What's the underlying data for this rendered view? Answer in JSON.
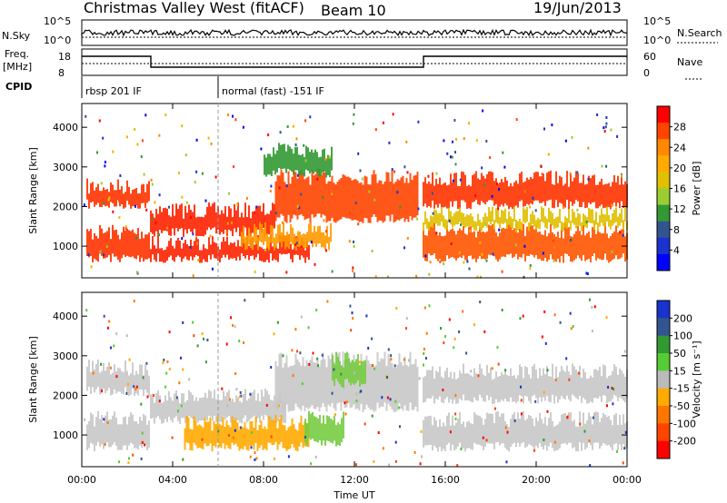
{
  "header": {
    "station": "Christmas Valley West (fitACF)",
    "beam": "Beam 10",
    "date": "19/Jun/2013"
  },
  "summary_panel": {
    "nsky_label": "N.Sky",
    "nsky_ticks": [
      "10^5",
      "10^0"
    ],
    "nsearch_label": "N.Search",
    "nsearch_ticks": [
      "10^5",
      "10^0"
    ],
    "freq_label_1": "Freq.",
    "freq_label_2": "[MHz]",
    "freq_ticks": [
      "18",
      "8"
    ],
    "nave_label": "Nave",
    "nave_ticks": [
      "60",
      "0"
    ],
    "cpid_label": "CPID",
    "cpid_entries": [
      {
        "time_h": 0.0,
        "label": "rbsp 201 IF"
      },
      {
        "time_h": 6.0,
        "label": "normal (fast) -151 IF"
      }
    ]
  },
  "chart_data": [
    {
      "type": "heatmap",
      "name": "power",
      "xlabel": "",
      "ylabel": "Slant Range [km]",
      "xlim": [
        0,
        24
      ],
      "ylim": [
        200,
        4600
      ],
      "yticks": [
        1000,
        2000,
        3000,
        4000
      ],
      "colorbar_label": "Power [dB]",
      "colorbar_ticks": [
        "28",
        "24",
        "20",
        "16",
        "12",
        "8",
        "4"
      ],
      "colorbar_colors": [
        "#ff0000",
        "#ff4400",
        "#ff8800",
        "#ffaa00",
        "#e0c000",
        "#9acd32",
        "#339933",
        "#33558f",
        "#1a33cc",
        "#0000ff"
      ],
      "bands": [
        {
          "t": [
            0.2,
            3.0
          ],
          "r": [
            2050,
            2500
          ],
          "level": "#ff3300"
        },
        {
          "t": [
            0.2,
            3.0
          ],
          "r": [
            700,
            1350
          ],
          "level": "#ff3300"
        },
        {
          "t": [
            3.0,
            8.5
          ],
          "r": [
            1350,
            1900
          ],
          "level": "#ff2200"
        },
        {
          "t": [
            3.0,
            10.0
          ],
          "r": [
            700,
            1100
          ],
          "level": "#ff2200"
        },
        {
          "t": [
            8.5,
            14.8
          ],
          "r": [
            1700,
            2750
          ],
          "level": "#ff4400"
        },
        {
          "t": [
            7.0,
            11.0
          ],
          "r": [
            1000,
            1400
          ],
          "level": "#ff9900"
        },
        {
          "t": [
            15.0,
            24.0
          ],
          "r": [
            2050,
            2700
          ],
          "level": "#ff3300"
        },
        {
          "t": [
            15.0,
            24.0
          ],
          "r": [
            700,
            1400
          ],
          "level": "#ff5500"
        },
        {
          "t": [
            15.0,
            24.0
          ],
          "r": [
            1500,
            1800
          ],
          "level": "#e0c000"
        },
        {
          "t": [
            8.0,
            11.0
          ],
          "r": [
            2850,
            3400
          ],
          "level": "#339933"
        }
      ]
    },
    {
      "type": "heatmap",
      "name": "velocity",
      "xlabel": "Time UT",
      "ylabel": "Slant Range [km]",
      "xlim": [
        0,
        24
      ],
      "ylim": [
        200,
        4600
      ],
      "xticks": [
        "00:00",
        "04:00",
        "08:00",
        "12:00",
        "16:00",
        "20:00",
        "00:00"
      ],
      "yticks": [
        1000,
        2000,
        3000,
        4000
      ],
      "colorbar_label": "Velocity [m s⁻¹]",
      "colorbar_ticks": [
        "200",
        "100",
        "50",
        "15",
        "-15",
        "-50",
        "-100",
        "-200"
      ],
      "colorbar_colors": [
        "#1a33cc",
        "#33558f",
        "#339933",
        "#55cc33",
        "#bbbbbb",
        "#ffaa00",
        "#ff7700",
        "#ff4400",
        "#ff0000"
      ],
      "bands": [
        {
          "t": [
            0.2,
            3.0
          ],
          "r": [
            2100,
            2700
          ],
          "level": "#c8c8c8"
        },
        {
          "t": [
            0.2,
            3.0
          ],
          "r": [
            700,
            1400
          ],
          "level": "#c8c8c8"
        },
        {
          "t": [
            3.0,
            9.0
          ],
          "r": [
            1400,
            2000
          ],
          "level": "#c8c8c8"
        },
        {
          "t": [
            8.5,
            14.8
          ],
          "r": [
            1700,
            2900
          ],
          "level": "#c8c8c8"
        },
        {
          "t": [
            4.5,
            10.0
          ],
          "r": [
            700,
            1300
          ],
          "level": "#ffaa00"
        },
        {
          "t": [
            9.8,
            11.5
          ],
          "r": [
            800,
            1400
          ],
          "level": "#77cc44"
        },
        {
          "t": [
            15.0,
            24.0
          ],
          "r": [
            1900,
            2600
          ],
          "level": "#c8c8c8"
        },
        {
          "t": [
            15.0,
            24.0
          ],
          "r": [
            700,
            1400
          ],
          "level": "#c8c8c8"
        },
        {
          "t": [
            11.0,
            12.5
          ],
          "r": [
            2300,
            2900
          ],
          "level": "#77cc44"
        }
      ]
    }
  ]
}
